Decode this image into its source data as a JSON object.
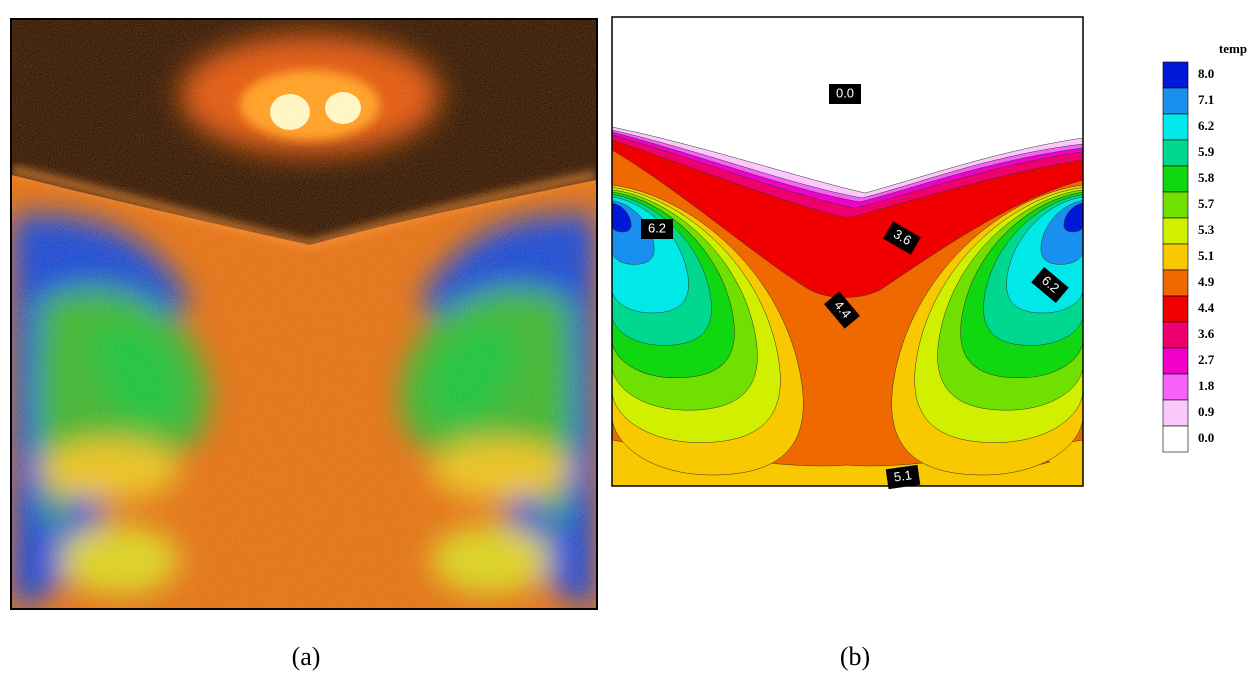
{
  "figure": {
    "panels": [
      {
        "caption": "(a)"
      },
      {
        "caption": "(b)",
        "contour_labels": [
          "0.0",
          "6.2",
          "3.6",
          "4.4",
          "6.2",
          "5.1"
        ],
        "legend": {
          "title": "temp",
          "entries": [
            {
              "label": "8.0",
              "color": "#0018d8"
            },
            {
              "label": "7.1",
              "color": "#1890f0"
            },
            {
              "label": "6.2",
              "color": "#00e8e8"
            },
            {
              "label": "5.9",
              "color": "#00d890"
            },
            {
              "label": "5.8",
              "color": "#10d810"
            },
            {
              "label": "5.7",
              "color": "#70e000"
            },
            {
              "label": "5.3",
              "color": "#d0f000"
            },
            {
              "label": "5.1",
              "color": "#f8c800"
            },
            {
              "label": "4.9",
              "color": "#f06800"
            },
            {
              "label": "4.4",
              "color": "#f00000"
            },
            {
              "label": "3.6",
              "color": "#f0006c"
            },
            {
              "label": "2.7",
              "color": "#f000c8"
            },
            {
              "label": "1.8",
              "color": "#f860f8"
            },
            {
              "label": "0.9",
              "color": "#fcc8fc"
            },
            {
              "label": "0.0",
              "color": "#ffffff"
            }
          ]
        }
      }
    ]
  }
}
